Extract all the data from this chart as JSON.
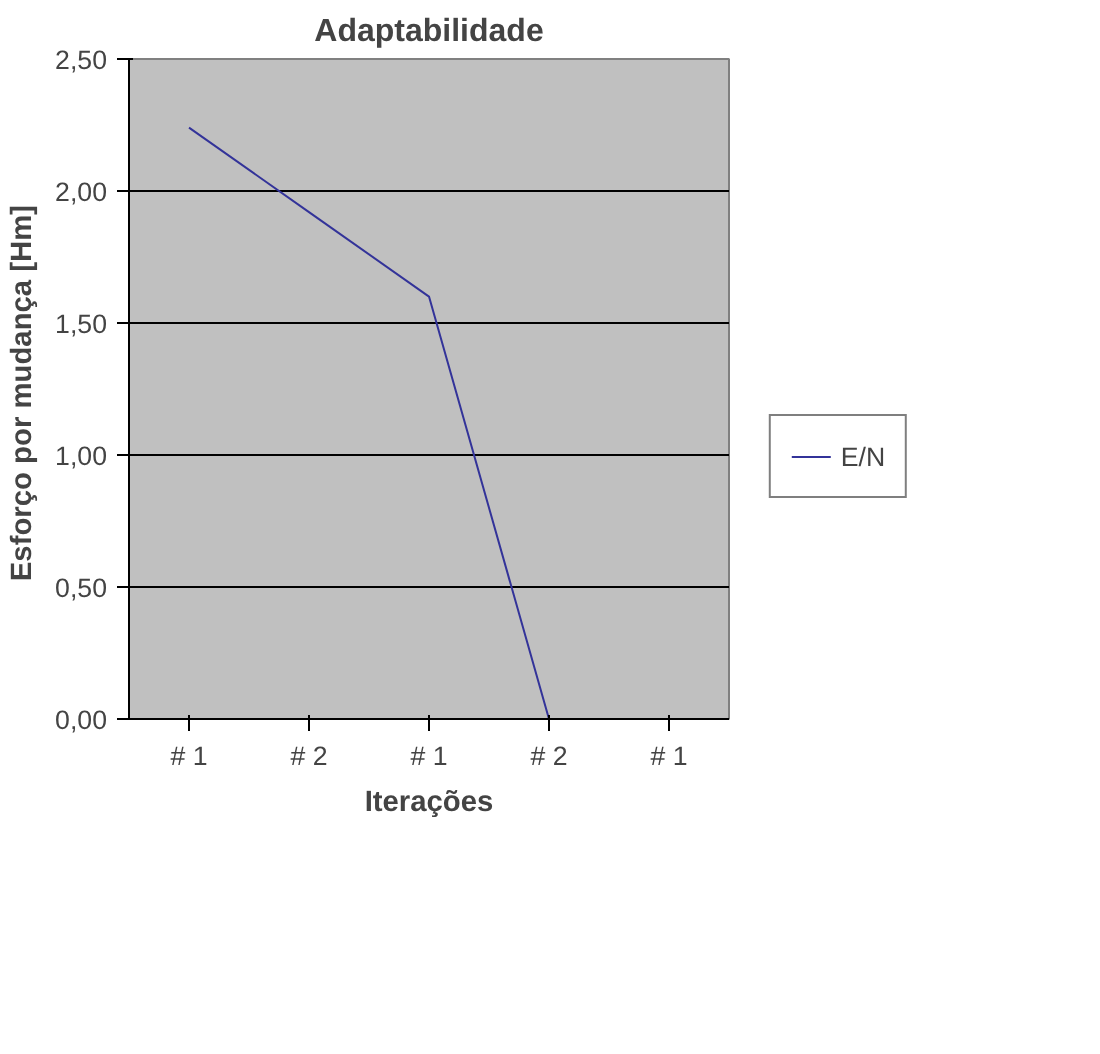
{
  "chart_data": {
    "type": "line",
    "title": "Adaptabilidade",
    "xlabel": "Iterações",
    "ylabel": "Esforço por mudança  [Hm]",
    "categories": [
      "# 1",
      "# 2",
      "# 1",
      "# 2",
      "# 1"
    ],
    "series": [
      {
        "name": "E/N",
        "color": "#333399",
        "values": [
          2.24,
          1.92,
          1.6,
          0,
          0
        ]
      }
    ],
    "ylim": [
      0,
      2.5
    ],
    "yticks": [
      {
        "value": 0,
        "label": "0,00"
      },
      {
        "value": 0.5,
        "label": "0,50"
      },
      {
        "value": 1,
        "label": "1,00"
      },
      {
        "value": 1.5,
        "label": "1,50"
      },
      {
        "value": 2,
        "label": "2,00"
      },
      {
        "value": 2.5,
        "label": "2,50"
      }
    ],
    "grid": "y",
    "legend": "right",
    "marker": "none",
    "line_style": "solid"
  }
}
